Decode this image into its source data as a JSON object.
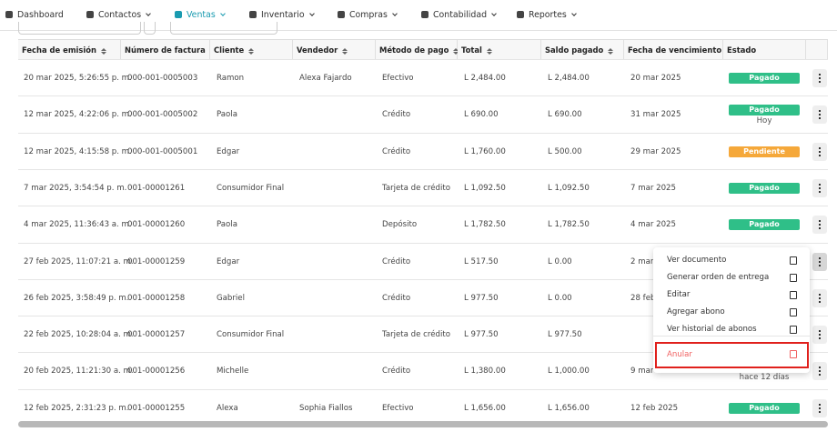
{
  "nav": {
    "items": [
      "Dashboard",
      "Contactos",
      "Ventas",
      "Inventario",
      "Compras",
      "Contabilidad",
      "Reportes"
    ],
    "active": 2
  },
  "table": {
    "headers": [
      "Fecha de emisión",
      "Número de factura",
      "Cliente",
      "Vendedor",
      "Método de pago",
      "Total",
      "Saldo pagado",
      "Fecha de vencimiento",
      "Estado"
    ],
    "rows": [
      {
        "cells": [
          "20 mar 2025, 5:26:55 p. m.",
          "000-001-0005003",
          "Ramon",
          "Alexa Fajardo",
          "Efectivo",
          "L 2,484.00",
          "L 2,484.00",
          "20 mar 2025"
        ],
        "status": "Pagado",
        "status_color": "#2fbf88",
        "note": null
      },
      {
        "cells": [
          "12 mar 2025, 4:22:06 p. m.",
          "000-001-0005002",
          "Paola",
          null,
          "Crédito",
          "L 690.00",
          "L 690.00",
          "31 mar 2025"
        ],
        "status": "Pagado",
        "status_color": "#2fbf88",
        "note": "Hoy"
      },
      {
        "cells": [
          "12 mar 2025, 4:15:58 p. m.",
          "000-001-0005001",
          "Edgar",
          null,
          "Crédito",
          "L 1,760.00",
          "L 500.00",
          "29 mar 2025"
        ],
        "status": "Pendiente",
        "status_color": "#f5a83a",
        "note": null
      },
      {
        "cells": [
          "7 mar 2025, 3:54:54 p. m.",
          "001-00001261",
          "Consumidor Final",
          null,
          "Tarjeta de crédito",
          "L 1,092.50",
          "L 1,092.50",
          "7 mar 2025"
        ],
        "status": "Pagado",
        "status_color": "#2fbf88",
        "note": null
      },
      {
        "cells": [
          "4 mar 2025, 11:36:43 a. m.",
          "001-00001260",
          "Paola",
          null,
          "Depósito",
          "L 1,782.50",
          "L 1,782.50",
          "4 mar 2025"
        ],
        "status": "Pagado",
        "status_color": "#2fbf88",
        "note": null
      },
      {
        "cells": [
          "27 feb 2025, 11:07:21 a. m.",
          "001-00001259",
          "Edgar",
          null,
          "Crédito",
          "L 517.50",
          "L 0.00",
          "2 mar"
        ],
        "status": null,
        "status_color": "#f05252",
        "note": null
      },
      {
        "cells": [
          "26 feb 2025, 3:58:49 p. m.",
          "001-00001258",
          "Gabriel",
          null,
          "Crédito",
          "L 977.50",
          "L 0.00",
          "28 feb"
        ],
        "status": null,
        "status_color": null,
        "note": null
      },
      {
        "cells": [
          "22 feb 2025, 10:28:04 a. m.",
          "001-00001257",
          "Consumidor Final",
          null,
          "Tarjeta de crédito",
          "L 977.50",
          "L 977.50",
          null
        ],
        "status": null,
        "status_color": null,
        "note": null
      },
      {
        "cells": [
          "20 feb 2025, 11:21:30 a. m.",
          "001-00001256",
          "Michelle",
          null,
          "Crédito",
          "L 1,380.00",
          "L 1,000.00",
          "9 mar"
        ],
        "status": null,
        "status_color": null,
        "note": "hace 12 días"
      },
      {
        "cells": [
          "12 feb 2025, 2:31:23 p. m.",
          "001-00001255",
          "Alexa",
          "Sophia Fiallos",
          "Efectivo",
          "L 1,656.00",
          "L 1,656.00",
          "12 feb 2025"
        ],
        "status": "Pagado",
        "status_color": "#2fbf88",
        "note": null
      }
    ]
  },
  "menu": {
    "items": [
      "Ver documento",
      "Generar orden de entrega",
      "Editar",
      "Agregar abono",
      "Ver historial de abonos"
    ],
    "danger": "Anular"
  }
}
